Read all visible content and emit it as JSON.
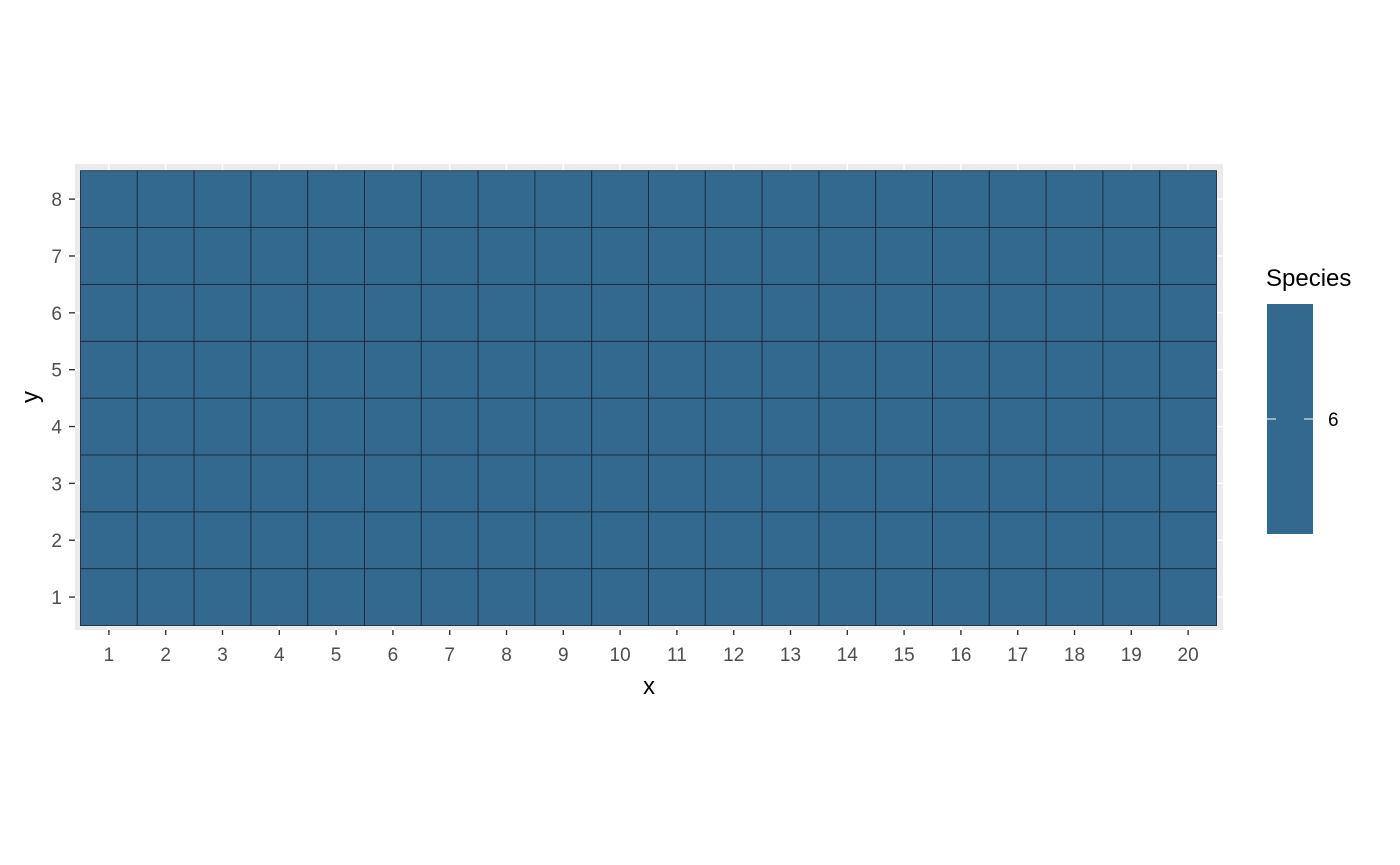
{
  "chart_data": {
    "type": "heatmap",
    "title": "",
    "xlabel": "x",
    "ylabel": "y",
    "x": [
      1,
      2,
      3,
      4,
      5,
      6,
      7,
      8,
      9,
      10,
      11,
      12,
      13,
      14,
      15,
      16,
      17,
      18,
      19,
      20
    ],
    "y": [
      1,
      2,
      3,
      4,
      5,
      6,
      7,
      8
    ],
    "fill_value": 6,
    "fill_variable": "Species",
    "xlim": [
      0.5,
      20.5
    ],
    "ylim": [
      0.5,
      8.5
    ],
    "grid": true,
    "legend": {
      "title": "Species",
      "position": "right",
      "breaks": [
        6
      ],
      "labels": [
        "6"
      ]
    },
    "colors": {
      "tile_fill": "#33688f",
      "tile_border": "#1b2a3a",
      "panel_background": "#ebebeb",
      "grid_line": "#ffffff",
      "tick_mark": "#333333",
      "legend_tick": "#ffffff"
    }
  }
}
